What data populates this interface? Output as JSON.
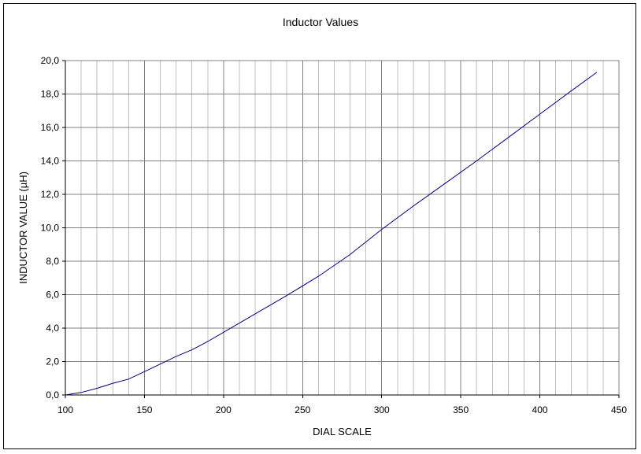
{
  "chart_data": {
    "type": "line",
    "title": "Inductor Values",
    "xlabel": "DIAL SCALE",
    "ylabel": "INDUCTOR VALUE  (µH)",
    "xlim": [
      100,
      450
    ],
    "ylim": [
      0,
      20
    ],
    "x_ticks": [
      "100",
      "150",
      "200",
      "250",
      "300",
      "350",
      "400",
      "450"
    ],
    "y_ticks": [
      "0,0",
      "2,0",
      "4,0",
      "6,0",
      "8,0",
      "10,0",
      "12,0",
      "14,0",
      "16,0",
      "18,0",
      "20,0"
    ],
    "x_minor_step": 10,
    "x_major_step": 50,
    "y_step": 2,
    "grid": true,
    "legend": "none",
    "series_color": "#000080",
    "series": [
      {
        "x": [
          100,
          110,
          120,
          130,
          140,
          150,
          160,
          170,
          180,
          190,
          200,
          220,
          240,
          260,
          280,
          300,
          320,
          340,
          360,
          380,
          400,
          420,
          436
        ],
        "y": [
          0.0,
          0.15,
          0.4,
          0.7,
          0.95,
          1.4,
          1.85,
          2.3,
          2.7,
          3.2,
          3.75,
          4.85,
          5.95,
          7.1,
          8.4,
          9.9,
          11.3,
          12.65,
          14.0,
          15.4,
          16.8,
          18.2,
          19.3
        ]
      }
    ]
  }
}
